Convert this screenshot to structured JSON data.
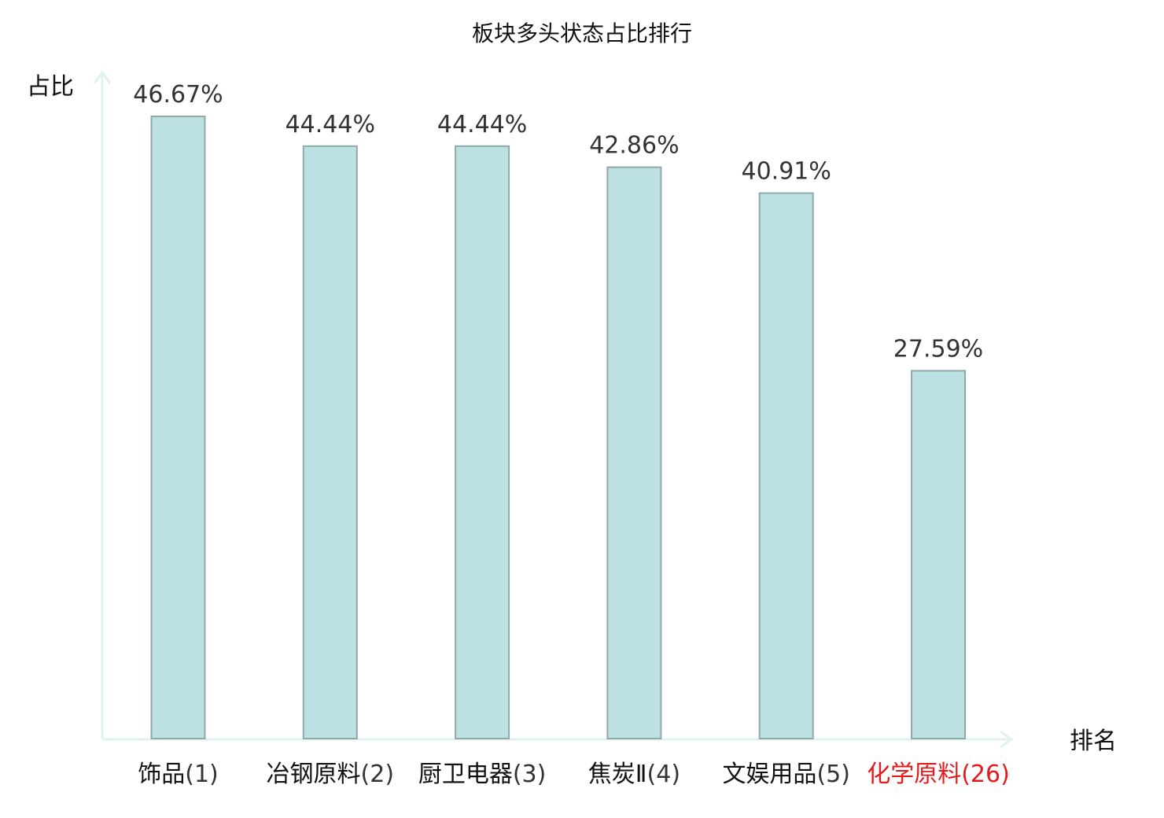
{
  "chart_data": {
    "type": "bar",
    "title": "板块多头状态占比排行",
    "xlabel": "排名",
    "ylabel": "占比",
    "categories": [
      {
        "name": "饰品",
        "rank": "(1)",
        "highlight": false
      },
      {
        "name": "冶钢原料",
        "rank": "(2)",
        "highlight": false
      },
      {
        "name": "厨卫电器",
        "rank": "(3)",
        "highlight": false
      },
      {
        "name": "焦炭Ⅱ",
        "rank": "(4)",
        "highlight": false
      },
      {
        "name": "文娱用品",
        "rank": "(5)",
        "highlight": false
      },
      {
        "name": "化学原料",
        "rank": "(26)",
        "highlight": true
      }
    ],
    "values": [
      46.67,
      44.44,
      44.44,
      42.86,
      40.91,
      27.59
    ],
    "value_labels": [
      "46.67%",
      "44.44%",
      "44.44%",
      "42.86%",
      "40.91%",
      "27.59%"
    ],
    "ylim": [
      0,
      46.67
    ],
    "grid": false,
    "legend": "none",
    "colors": {
      "bar_fill": "#bde1e3",
      "bar_stroke": "#8fa8a9",
      "axis": "#e0f2ef",
      "label_normal_name": "#111111",
      "label_normal_rank": "#333333",
      "label_highlight": "#e41a1c"
    }
  }
}
